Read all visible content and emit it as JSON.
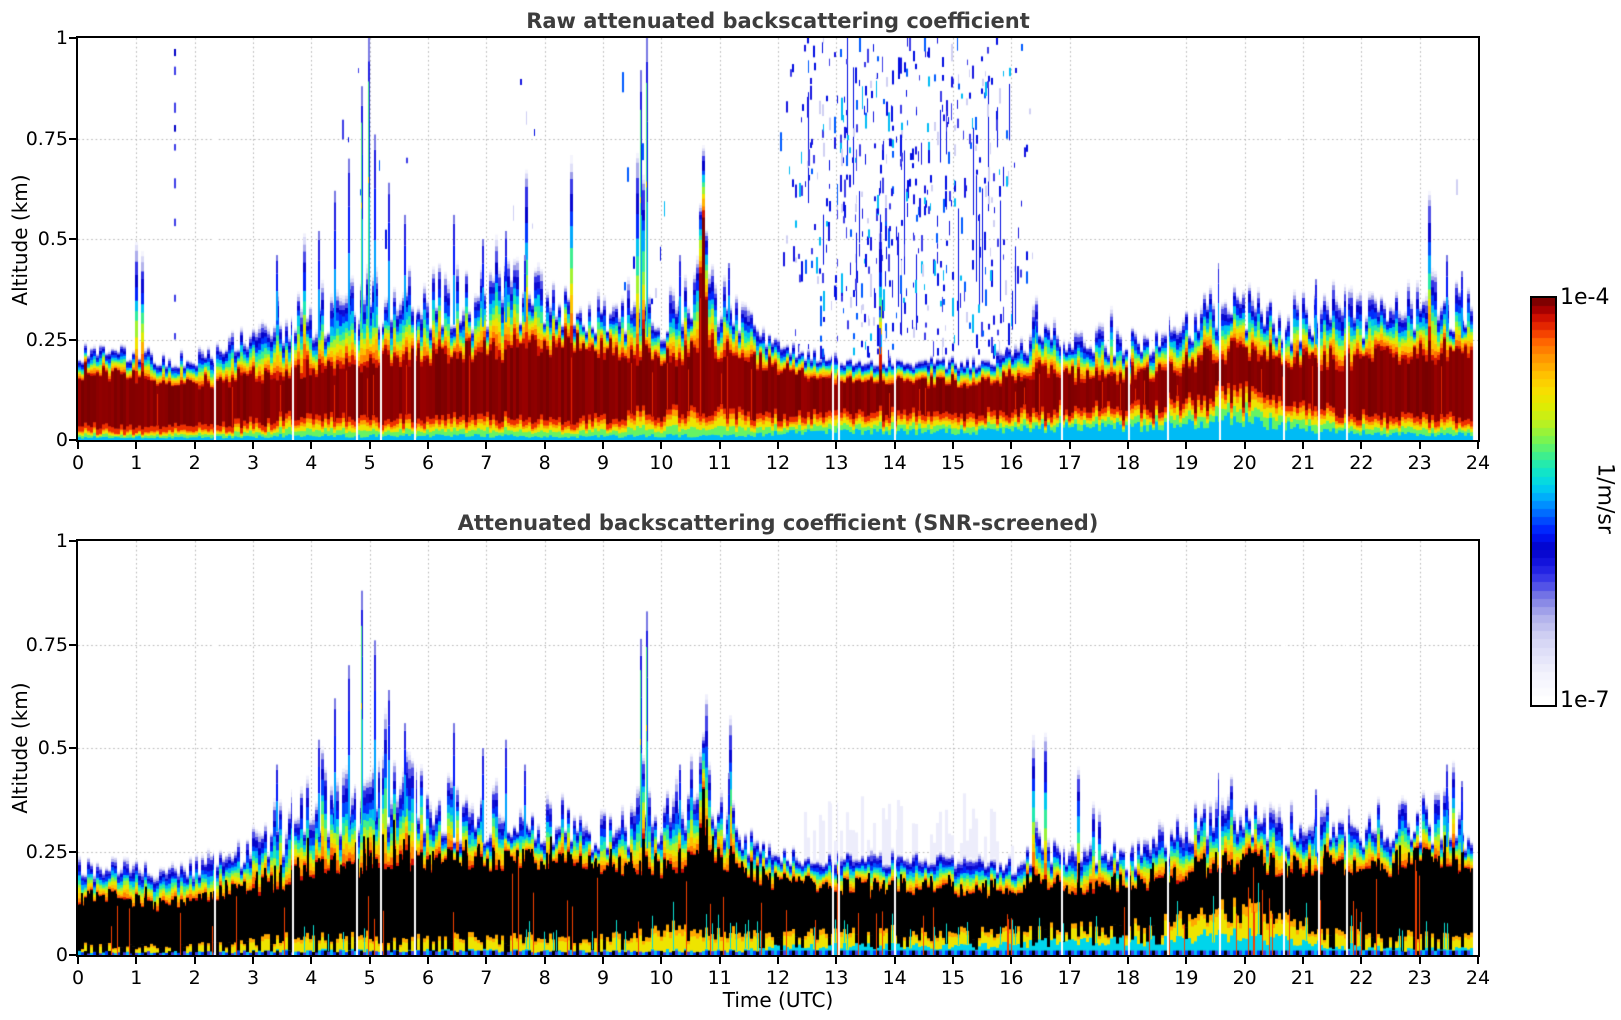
{
  "figure": {
    "x_axis": {
      "label": "Time (UTC)"
    },
    "y_axis": {
      "label": "Altitude (km)"
    },
    "colorbar": {
      "top_label": "1e-4",
      "bottom_label": "1e-7",
      "unit_label": "1/m/sr"
    }
  },
  "chart_data": {
    "type": "heatmap",
    "x": {
      "label": "Time (UTC)",
      "min": 0,
      "max": 24,
      "ticks": [
        0,
        1,
        2,
        3,
        4,
        5,
        6,
        7,
        8,
        9,
        10,
        11,
        12,
        13,
        14,
        15,
        16,
        17,
        18,
        19,
        20,
        21,
        22,
        23,
        24
      ]
    },
    "y": {
      "label": "Altitude (km)",
      "min": 0,
      "max": 1,
      "ticks": [
        0,
        0.25,
        0.5,
        0.75,
        1
      ],
      "tick_labels": [
        "0",
        "0.25",
        "0.5",
        "0.75",
        "1"
      ]
    },
    "color_scale": {
      "type": "log",
      "min": 1e-07,
      "max": 0.0001,
      "min_label": "1e-7",
      "max_label": "1e-4",
      "unit": "1/m/sr",
      "steps": 50
    },
    "grid": true,
    "time_samples_h": {
      "start": 0,
      "step": 0.5,
      "count": 49
    },
    "shared": {
      "ground_cyan_km": [
        0.008,
        0.008,
        0.008,
        0.008,
        0.008,
        0.008,
        0.01,
        0.012,
        0.012,
        0.012,
        0.012,
        0.012,
        0.012,
        0.012,
        0.012,
        0.012,
        0.01,
        0.01,
        0.01,
        0.012,
        0.012,
        0.012,
        0.012,
        0.012,
        0.02,
        0.022,
        0.022,
        0.022,
        0.022,
        0.022,
        0.022,
        0.022,
        0.025,
        0.03,
        0.035,
        0.035,
        0.035,
        0.035,
        0.04,
        0.05,
        0.05,
        0.04,
        0.03,
        0.025,
        0.02,
        0.015,
        0.015,
        0.015,
        0.015
      ],
      "ground_yellow_km": [
        0.015,
        0.015,
        0.015,
        0.015,
        0.015,
        0.02,
        0.025,
        0.03,
        0.03,
        0.03,
        0.03,
        0.03,
        0.03,
        0.03,
        0.03,
        0.03,
        0.03,
        0.03,
        0.03,
        0.04,
        0.05,
        0.05,
        0.05,
        0.04,
        0.03,
        0.03,
        0.03,
        0.03,
        0.03,
        0.03,
        0.03,
        0.03,
        0.03,
        0.03,
        0.03,
        0.03,
        0.03,
        0.03,
        0.05,
        0.06,
        0.06,
        0.05,
        0.04,
        0.035,
        0.03,
        0.03,
        0.03,
        0.03,
        0.03
      ],
      "roughness": [
        0.25,
        0.25,
        0.25,
        0.25,
        0.3,
        0.4,
        0.55,
        0.7,
        0.8,
        0.8,
        0.8,
        0.8,
        0.8,
        0.8,
        0.8,
        0.8,
        0.7,
        0.6,
        0.5,
        0.7,
        0.7,
        0.7,
        0.6,
        0.5,
        0.15,
        0.1,
        0.1,
        0.1,
        0.1,
        0.1,
        0.1,
        0.1,
        0.3,
        0.45,
        0.45,
        0.45,
        0.45,
        0.55,
        0.7,
        0.7,
        0.7,
        0.7,
        0.7,
        0.7,
        0.7,
        0.7,
        0.75,
        0.75,
        0.6
      ]
    },
    "panels": [
      {
        "title": "Raw attenuated backscattering coefficient",
        "core_style": "dark-red",
        "aerosol_top_km": [
          0.22,
          0.22,
          0.22,
          0.21,
          0.21,
          0.23,
          0.26,
          0.3,
          0.33,
          0.35,
          0.36,
          0.37,
          0.35,
          0.37,
          0.36,
          0.38,
          0.36,
          0.33,
          0.32,
          0.34,
          0.31,
          0.38,
          0.36,
          0.29,
          0.25,
          0.22,
          0.21,
          0.2,
          0.2,
          0.2,
          0.2,
          0.2,
          0.22,
          0.28,
          0.25,
          0.26,
          0.25,
          0.27,
          0.31,
          0.34,
          0.33,
          0.32,
          0.31,
          0.33,
          0.32,
          0.33,
          0.35,
          0.35,
          0.31
        ],
        "saturated_core_top_km": [
          0.17,
          0.17,
          0.16,
          0.15,
          0.14,
          0.15,
          0.16,
          0.17,
          0.18,
          0.19,
          0.2,
          0.2,
          0.21,
          0.22,
          0.22,
          0.23,
          0.24,
          0.25,
          0.23,
          0.21,
          0.2,
          0.22,
          0.22,
          0.2,
          0.18,
          0.17,
          0.16,
          0.16,
          0.15,
          0.15,
          0.15,
          0.15,
          0.16,
          0.17,
          0.16,
          0.16,
          0.16,
          0.17,
          0.19,
          0.21,
          0.22,
          0.21,
          0.2,
          0.2,
          0.2,
          0.21,
          0.22,
          0.22,
          0.21
        ],
        "noise_speckles_per_col": [
          0.15,
          0.15,
          0.2,
          0.5,
          0.25,
          0.2,
          0.2,
          0.4,
          0.4,
          0.8,
          0.9,
          0.8,
          0.5,
          0.6,
          0.5,
          0.8,
          0.9,
          0.6,
          0.5,
          1.2,
          0.8,
          0.5,
          0.4,
          0.3,
          0.6,
          6.0,
          8.0,
          9.0,
          8.5,
          8.0,
          7.0,
          6.5,
          4.0,
          0.5,
          0.2,
          0.15,
          0.1,
          0.15,
          0.3,
          0.5,
          0.3,
          0.2,
          0.15,
          0.1,
          0.1,
          0.2,
          0.5,
          0.8,
          0.3
        ],
        "env_bumps": [
          {
            "t": 9.68,
            "a": 0.55,
            "s": 0.025
          },
          {
            "t": 10.72,
            "a": 0.3,
            "s": 0.1
          },
          {
            "t": 3.42,
            "a": 0.1,
            "s": 0.05
          },
          {
            "t": 16.42,
            "a": 0.05,
            "s": 0.06
          },
          {
            "t": 11.1,
            "a": 0.05,
            "s": 0.08
          }
        ],
        "core_bumps": [
          {
            "t": 10.72,
            "a": 0.3,
            "s": 0.06
          },
          {
            "t": 9.68,
            "a": 0.18,
            "s": 0.015
          }
        ]
      },
      {
        "title": "Attenuated backscattering coefficient (SNR-screened)",
        "core_style": "black",
        "aerosol_top_km": [
          0.22,
          0.22,
          0.21,
          0.21,
          0.22,
          0.24,
          0.27,
          0.31,
          0.36,
          0.38,
          0.4,
          0.42,
          0.38,
          0.36,
          0.35,
          0.37,
          0.34,
          0.32,
          0.31,
          0.34,
          0.33,
          0.42,
          0.36,
          0.28,
          0.25,
          0.24,
          0.24,
          0.24,
          0.24,
          0.24,
          0.24,
          0.23,
          0.22,
          0.27,
          0.24,
          0.25,
          0.24,
          0.27,
          0.31,
          0.33,
          0.32,
          0.31,
          0.31,
          0.33,
          0.31,
          0.33,
          0.35,
          0.34,
          0.31
        ],
        "saturated_core_top_km": [
          0.14,
          0.14,
          0.13,
          0.12,
          0.13,
          0.15,
          0.16,
          0.18,
          0.2,
          0.21,
          0.22,
          0.23,
          0.23,
          0.23,
          0.23,
          0.24,
          0.24,
          0.24,
          0.22,
          0.21,
          0.21,
          0.24,
          0.23,
          0.2,
          0.18,
          0.17,
          0.17,
          0.16,
          0.16,
          0.16,
          0.16,
          0.16,
          0.16,
          0.18,
          0.17,
          0.17,
          0.17,
          0.18,
          0.2,
          0.22,
          0.23,
          0.22,
          0.21,
          0.22,
          0.21,
          0.22,
          0.23,
          0.23,
          0.22
        ],
        "noise_speckles_per_col": [
          0,
          0,
          0,
          0,
          0,
          0,
          0,
          0,
          0.02,
          0.02,
          0.02,
          0.02,
          0.02,
          0.02,
          0.02,
          0.02,
          0.02,
          0.05,
          0.02,
          0.1,
          0.08,
          0.02,
          0.02,
          0.02,
          0.05,
          0.2,
          0.25,
          0.3,
          0.3,
          0.3,
          0.25,
          0.2,
          0.1,
          0.05,
          0.03,
          0.02,
          0.02,
          0.02,
          0.02,
          0.02,
          0.02,
          0.02,
          0.02,
          0.02,
          0.02,
          0.02,
          0.05,
          0.05,
          0.02
        ],
        "env_bumps": [
          {
            "t": 9.68,
            "a": 0.42,
            "s": 0.022
          },
          {
            "t": 10.72,
            "a": 0.28,
            "s": 0.09
          },
          {
            "t": 3.42,
            "a": 0.09,
            "s": 0.05
          },
          {
            "t": 16.42,
            "a": 0.05,
            "s": 0.06
          }
        ],
        "core_bumps": [
          {
            "t": 10.72,
            "a": 0.12,
            "s": 0.06
          },
          {
            "t": 9.68,
            "a": 0.15,
            "s": 0.012
          }
        ]
      }
    ],
    "spikes": [
      {
        "t": 1.65,
        "h": 1.0,
        "panel": "raw",
        "style": "streak"
      },
      {
        "t": 3.4,
        "h": 0.46,
        "panel": "both"
      },
      {
        "t": 4.12,
        "h": 0.52,
        "panel": "both"
      },
      {
        "t": 4.38,
        "h": 0.62,
        "panel": "both"
      },
      {
        "t": 4.62,
        "h": 0.7,
        "panel": "both"
      },
      {
        "t": 4.85,
        "h": 0.88,
        "panel": "both",
        "core": true
      },
      {
        "t": 4.97,
        "h": 1.0,
        "panel": "raw",
        "core": true
      },
      {
        "t": 5.08,
        "h": 0.76,
        "panel": "both"
      },
      {
        "t": 5.32,
        "h": 0.64,
        "panel": "both"
      },
      {
        "t": 5.58,
        "h": 0.56,
        "panel": "both"
      },
      {
        "t": 6.42,
        "h": 0.56,
        "panel": "both"
      },
      {
        "t": 6.92,
        "h": 0.5,
        "panel": "both"
      },
      {
        "t": 7.32,
        "h": 0.52,
        "panel": "both"
      },
      {
        "t": 7.65,
        "h": 0.46,
        "panel": "both"
      },
      {
        "t": 9.63,
        "h": 0.92,
        "panel": "both",
        "core": true
      },
      {
        "t": 9.73,
        "h": 1.0,
        "panel": "both",
        "core": true
      },
      {
        "t": 10.3,
        "h": 0.46,
        "panel": "both"
      },
      {
        "t": 11.15,
        "h": 0.44,
        "panel": "both"
      },
      {
        "t": 16.42,
        "h": 0.3,
        "panel": "both"
      },
      {
        "t": 19.55,
        "h": 0.44,
        "panel": "both"
      },
      {
        "t": 21.2,
        "h": 0.4,
        "panel": "both"
      },
      {
        "t": 23.45,
        "h": 0.46,
        "panel": "both"
      },
      {
        "t": 23.7,
        "h": 0.42,
        "panel": "both"
      }
    ],
    "data_gaps_utc": [
      2.34,
      3.69,
      4.79,
      5.2,
      5.77,
      12.95,
      13.05,
      14.01,
      16.87,
      18.02,
      18.68,
      19.57,
      20.67,
      21.28,
      21.75
    ],
    "colormap_stops": [
      [
        0.0,
        255,
        255,
        255
      ],
      [
        0.06,
        243,
        243,
        253
      ],
      [
        0.11,
        228,
        228,
        249
      ],
      [
        0.16,
        208,
        208,
        243
      ],
      [
        0.21,
        176,
        176,
        235
      ],
      [
        0.26,
        122,
        122,
        228
      ],
      [
        0.3,
        62,
        62,
        232
      ],
      [
        0.34,
        22,
        22,
        224
      ],
      [
        0.38,
        2,
        2,
        200
      ],
      [
        0.42,
        0,
        24,
        252
      ],
      [
        0.46,
        0,
        92,
        255
      ],
      [
        0.5,
        0,
        160,
        255
      ],
      [
        0.54,
        0,
        213,
        235
      ],
      [
        0.58,
        22,
        232,
        190
      ],
      [
        0.62,
        72,
        240,
        130
      ],
      [
        0.66,
        132,
        245,
        70
      ],
      [
        0.7,
        192,
        240,
        28
      ],
      [
        0.74,
        226,
        235,
        0
      ],
      [
        0.78,
        250,
        220,
        0
      ],
      [
        0.82,
        255,
        190,
        0
      ],
      [
        0.86,
        255,
        148,
        0
      ],
      [
        0.9,
        255,
        98,
        0
      ],
      [
        0.93,
        238,
        48,
        0
      ],
      [
        0.96,
        205,
        14,
        0
      ],
      [
        0.98,
        166,
        0,
        0
      ],
      [
        1.0,
        127,
        0,
        0
      ]
    ]
  }
}
